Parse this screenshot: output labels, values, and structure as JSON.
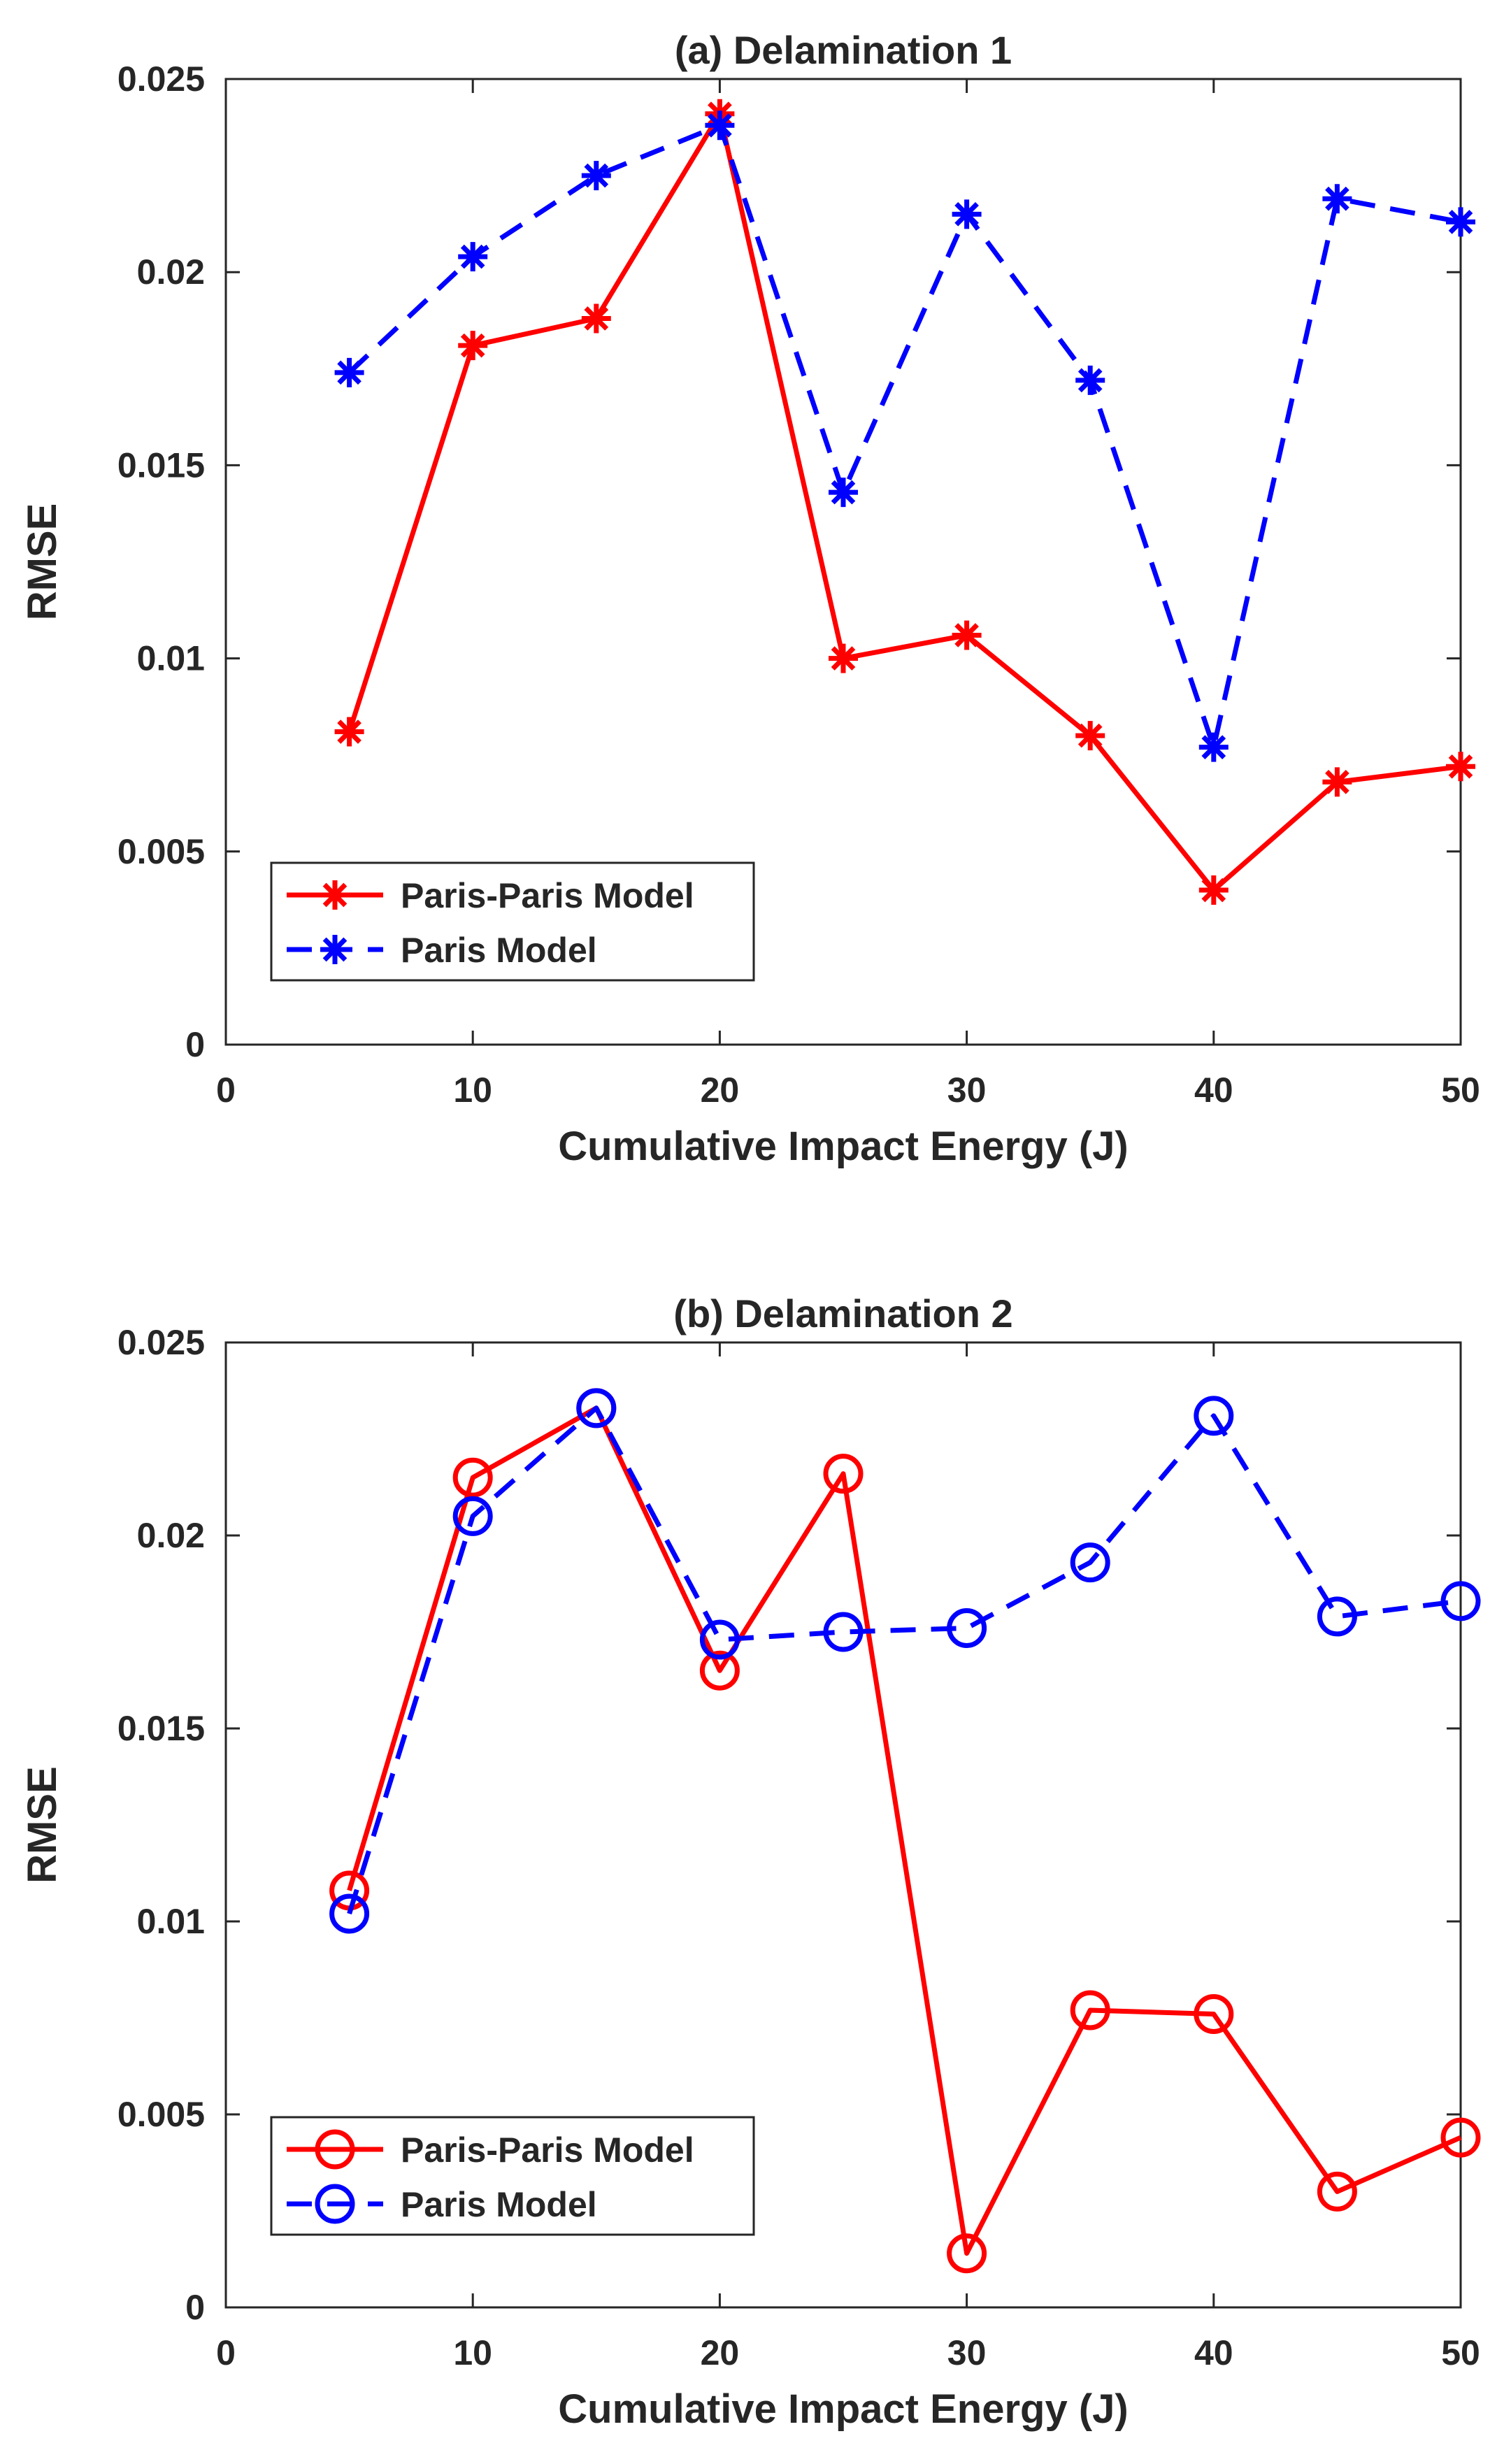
{
  "chart_data": [
    {
      "type": "line",
      "title": "(a) Delamination 1",
      "xlabel": "Cumulative Impact Energy (J)",
      "ylabel": "RMSE",
      "xlim": [
        0,
        50
      ],
      "ylim": [
        0,
        0.025
      ],
      "xticks": [
        "0",
        "10",
        "20",
        "30",
        "40",
        "50"
      ],
      "yticks": [
        "0",
        "0.005",
        "0.01",
        "0.015",
        "0.02",
        "0.025"
      ],
      "x": [
        5,
        10,
        15,
        20,
        25,
        30,
        35,
        40,
        45,
        50
      ],
      "grid": false,
      "legend_position": "lower-left",
      "marker": "asterisk",
      "series": [
        {
          "name": "Paris-Paris Model",
          "color": "#ff0000",
          "style": "solid",
          "values": [
            0.0081,
            0.0181,
            0.0188,
            0.0241,
            0.01,
            0.0106,
            0.008,
            0.004,
            0.0068,
            0.0072
          ]
        },
        {
          "name": "Paris Model",
          "color": "#0000ff",
          "style": "dashed",
          "values": [
            0.0174,
            0.0204,
            0.0225,
            0.0238,
            0.0143,
            0.0215,
            0.0172,
            0.0077,
            0.0219,
            0.0213
          ]
        }
      ]
    },
    {
      "type": "line",
      "title": "(b) Delamination 2",
      "xlabel": "Cumulative Impact Energy (J)",
      "ylabel": "RMSE",
      "xlim": [
        0,
        50
      ],
      "ylim": [
        0,
        0.025
      ],
      "xticks": [
        "0",
        "10",
        "20",
        "30",
        "40",
        "50"
      ],
      "yticks": [
        "0",
        "0.005",
        "0.01",
        "0.015",
        "0.02",
        "0.025"
      ],
      "x": [
        5,
        10,
        15,
        20,
        25,
        30,
        35,
        40,
        45,
        50
      ],
      "grid": false,
      "legend_position": "lower-left",
      "marker": "circle",
      "series": [
        {
          "name": "Paris-Paris Model",
          "color": "#ff0000",
          "style": "solid",
          "values": [
            0.0108,
            0.0215,
            0.0233,
            0.0165,
            0.0216,
            0.0014,
            0.0077,
            0.0076,
            0.003,
            0.0044
          ]
        },
        {
          "name": "Paris Model",
          "color": "#0000ff",
          "style": "dashed",
          "values": [
            0.0102,
            0.0205,
            0.0233,
            0.0173,
            0.0175,
            0.0176,
            0.0193,
            0.0231,
            0.0179,
            0.0183
          ]
        }
      ]
    }
  ]
}
